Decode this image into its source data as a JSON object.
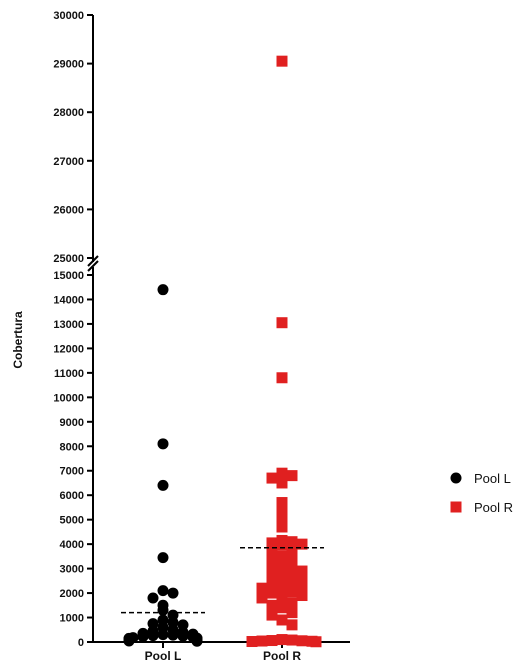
{
  "chart_data": {
    "type": "scatter",
    "ylabel": "Cobertura",
    "categories": [
      "Pool L",
      "Pool R"
    ],
    "y_axis_broken": true,
    "y_segments": [
      {
        "range": [
          0,
          15000
        ],
        "ticks": [
          0,
          1000,
          2000,
          3000,
          4000,
          5000,
          6000,
          7000,
          8000,
          9000,
          10000,
          11000,
          12000,
          13000,
          14000,
          15000
        ]
      },
      {
        "range": [
          25000,
          30000
        ],
        "ticks": [
          25000,
          26000,
          27000,
          28000,
          29000,
          30000
        ]
      }
    ],
    "legend": {
      "placement": "right",
      "entries": [
        {
          "label": "Pool L",
          "series": 0
        },
        {
          "label": "Pool R",
          "series": 1
        }
      ]
    },
    "series": [
      {
        "name": "Pool L",
        "category": "Pool L",
        "marker": "circle",
        "color": "#000000",
        "mean": 1200,
        "values": [
          14400,
          8100,
          6400,
          3450,
          2100,
          2000,
          1800,
          1500,
          1300,
          1100,
          900,
          800,
          750,
          700,
          600,
          500,
          450,
          400,
          350,
          320,
          300,
          280,
          260,
          240,
          220,
          200,
          180,
          160,
          150,
          140,
          130,
          120,
          110,
          100,
          90,
          80,
          60,
          50,
          40,
          30
        ]
      },
      {
        "name": "Pool R",
        "category": "Pool R",
        "marker": "square",
        "color": "#e02020",
        "mean": 3850,
        "values": [
          29050,
          13050,
          10800,
          6900,
          6800,
          6700,
          6500,
          5700,
          5400,
          5000,
          4700,
          4150,
          4100,
          4050,
          4000,
          3950,
          3800,
          3700,
          3500,
          3400,
          3300,
          3200,
          3100,
          3000,
          2900,
          2800,
          2700,
          2600,
          2600,
          2500,
          2450,
          2400,
          2300,
          2200,
          2100,
          2050,
          2000,
          1900,
          1800,
          1700,
          1600,
          1500,
          1400,
          1200,
          1100,
          900,
          700,
          100,
          80,
          60,
          50,
          40,
          30,
          20,
          10
        ]
      }
    ]
  }
}
